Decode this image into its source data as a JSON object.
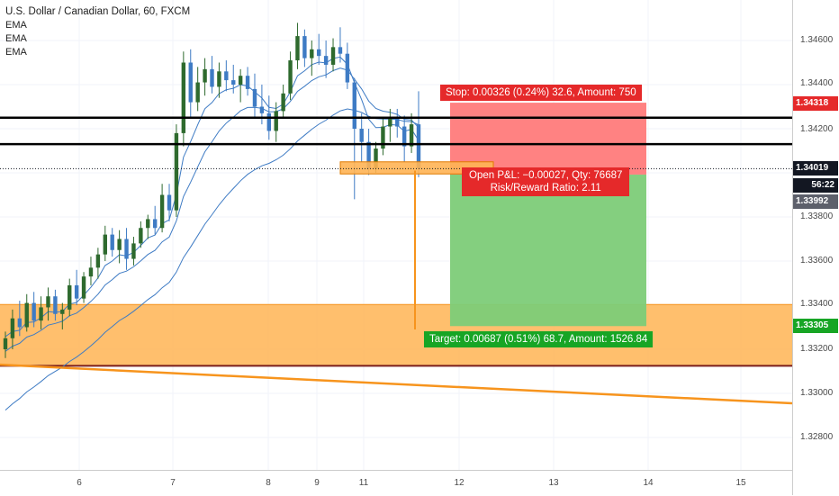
{
  "legend": {
    "title": "U.S. Dollar / Canadian Dollar, 60, FXCM",
    "indicators": [
      "EMA",
      "EMA",
      "EMA"
    ]
  },
  "price_axis": {
    "labels": [
      "1.34600",
      "1.34400",
      "1.34200",
      "1.33800",
      "1.33600",
      "1.33400",
      "1.33200",
      "1.33000",
      "1.32800"
    ],
    "tags": {
      "stop": {
        "text": "1.34318",
        "color": "#e5292a"
      },
      "last": {
        "text": "1.34019",
        "color": "#131722"
      },
      "countdown": {
        "text": "56:22",
        "color": "#131722"
      },
      "entry": {
        "text": "1.33992",
        "color": "#5d606b"
      },
      "target": {
        "text": "1.33305",
        "color": "#17a525"
      }
    }
  },
  "time_axis": {
    "labels": [
      "6",
      "7",
      "8",
      "9",
      "11",
      "12",
      "13",
      "14",
      "15"
    ]
  },
  "position": {
    "stop_text": "Stop: 0.00326 (0.24%) 32.6, Amount: 750",
    "pnl_text": "Open P&L: −0.00027, Qty: 76687",
    "rr_text": "Risk/Reward Ratio: 2.11",
    "target_text": "Target: 0.00687 (0.51%) 68.7, Amount: 1526.84",
    "stop_price": 1.34318,
    "entry_price": 1.33992,
    "target_price": 1.33305
  },
  "levels": {
    "resistance_1": 1.3425,
    "resistance_2": 1.3413,
    "support_zone": [
      1.33125,
      1.33403
    ],
    "small_zone": [
      1.33995,
      1.3405
    ]
  },
  "colors": {
    "bull_candle": "#2e6a2e",
    "bear_candle": "#3e7bc4",
    "ema_fast": "#3e7bc4",
    "ema_mid": "#3e7bc4",
    "ema_slow": "#3e7bc4",
    "zone": "#ffb454",
    "trendline": "#f7941d",
    "stop_fill": "#ff7b7b",
    "target_fill": "#7dcc78"
  },
  "chart_data": {
    "type": "candlestick",
    "symbol": "USDCAD",
    "interval": "60",
    "ylim": [
      1.3272,
      1.3469
    ],
    "candles": [
      [
        1.332,
        1.3328,
        1.3316,
        1.3325
      ],
      [
        1.3325,
        1.3338,
        1.332,
        1.3334
      ],
      [
        1.3334,
        1.3342,
        1.3326,
        1.333
      ],
      [
        1.333,
        1.3345,
        1.3328,
        1.3341
      ],
      [
        1.3341,
        1.3346,
        1.333,
        1.3333
      ],
      [
        1.3333,
        1.3344,
        1.3329,
        1.3339
      ],
      [
        1.3339,
        1.3348,
        1.3333,
        1.3344
      ],
      [
        1.3344,
        1.3347,
        1.3333,
        1.3336
      ],
      [
        1.3336,
        1.3341,
        1.3329,
        1.3338
      ],
      [
        1.3338,
        1.3352,
        1.3335,
        1.3349
      ],
      [
        1.3349,
        1.3356,
        1.334,
        1.3343
      ],
      [
        1.3343,
        1.3355,
        1.3341,
        1.3353
      ],
      [
        1.3353,
        1.3362,
        1.3349,
        1.3357
      ],
      [
        1.3357,
        1.3366,
        1.3352,
        1.3363
      ],
      [
        1.3363,
        1.3376,
        1.336,
        1.3372
      ],
      [
        1.3372,
        1.3375,
        1.3362,
        1.3365
      ],
      [
        1.3365,
        1.3374,
        1.3359,
        1.337
      ],
      [
        1.337,
        1.3375,
        1.3356,
        1.3361
      ],
      [
        1.3361,
        1.3371,
        1.3358,
        1.3368
      ],
      [
        1.3368,
        1.3378,
        1.3366,
        1.3375
      ],
      [
        1.3375,
        1.3381,
        1.337,
        1.3379
      ],
      [
        1.3379,
        1.3385,
        1.3372,
        1.3375
      ],
      [
        1.3375,
        1.3395,
        1.3373,
        1.339
      ],
      [
        1.339,
        1.3395,
        1.3378,
        1.3383
      ],
      [
        1.3383,
        1.3422,
        1.338,
        1.3418
      ],
      [
        1.3418,
        1.3455,
        1.3412,
        1.345
      ],
      [
        1.345,
        1.3456,
        1.3425,
        1.3432
      ],
      [
        1.3432,
        1.3448,
        1.3428,
        1.3441
      ],
      [
        1.3441,
        1.3452,
        1.3435,
        1.3447
      ],
      [
        1.3447,
        1.3453,
        1.3436,
        1.3439
      ],
      [
        1.3439,
        1.345,
        1.3434,
        1.3446
      ],
      [
        1.3446,
        1.3451,
        1.3437,
        1.3442
      ],
      [
        1.3442,
        1.3449,
        1.3436,
        1.344
      ],
      [
        1.344,
        1.3447,
        1.3432,
        1.3444
      ],
      [
        1.3444,
        1.3448,
        1.3435,
        1.3438
      ],
      [
        1.3438,
        1.3445,
        1.3425,
        1.343
      ],
      [
        1.343,
        1.344,
        1.3422,
        1.3427
      ],
      [
        1.3427,
        1.3435,
        1.3415,
        1.3419
      ],
      [
        1.3419,
        1.3432,
        1.3414,
        1.3428
      ],
      [
        1.3428,
        1.344,
        1.3425,
        1.3436
      ],
      [
        1.3436,
        1.3455,
        1.3433,
        1.3451
      ],
      [
        1.3451,
        1.3468,
        1.3447,
        1.3462
      ],
      [
        1.3462,
        1.3465,
        1.3448,
        1.3452
      ],
      [
        1.3452,
        1.346,
        1.3444,
        1.3456
      ],
      [
        1.3456,
        1.3463,
        1.3449,
        1.3453
      ],
      [
        1.3453,
        1.346,
        1.3443,
        1.3449
      ],
      [
        1.3449,
        1.3461,
        1.3446,
        1.3457
      ],
      [
        1.3457,
        1.3466,
        1.345,
        1.3454
      ],
      [
        1.3454,
        1.3459,
        1.3438,
        1.3441
      ],
      [
        1.3441,
        1.3443,
        1.3388,
        1.342
      ],
      [
        1.342,
        1.3427,
        1.3405,
        1.3414
      ],
      [
        1.3414,
        1.342,
        1.3399,
        1.3402
      ],
      [
        1.3402,
        1.3414,
        1.34,
        1.3411
      ],
      [
        1.3411,
        1.3425,
        1.3408,
        1.3421
      ],
      [
        1.3421,
        1.3429,
        1.3414,
        1.3425
      ],
      [
        1.3425,
        1.3429,
        1.3416,
        1.3421
      ],
      [
        1.3421,
        1.3426,
        1.3405,
        1.3412
      ],
      [
        1.3412,
        1.3427,
        1.3409,
        1.3422
      ],
      [
        1.3422,
        1.3437,
        1.3398,
        1.3402
      ]
    ]
  }
}
